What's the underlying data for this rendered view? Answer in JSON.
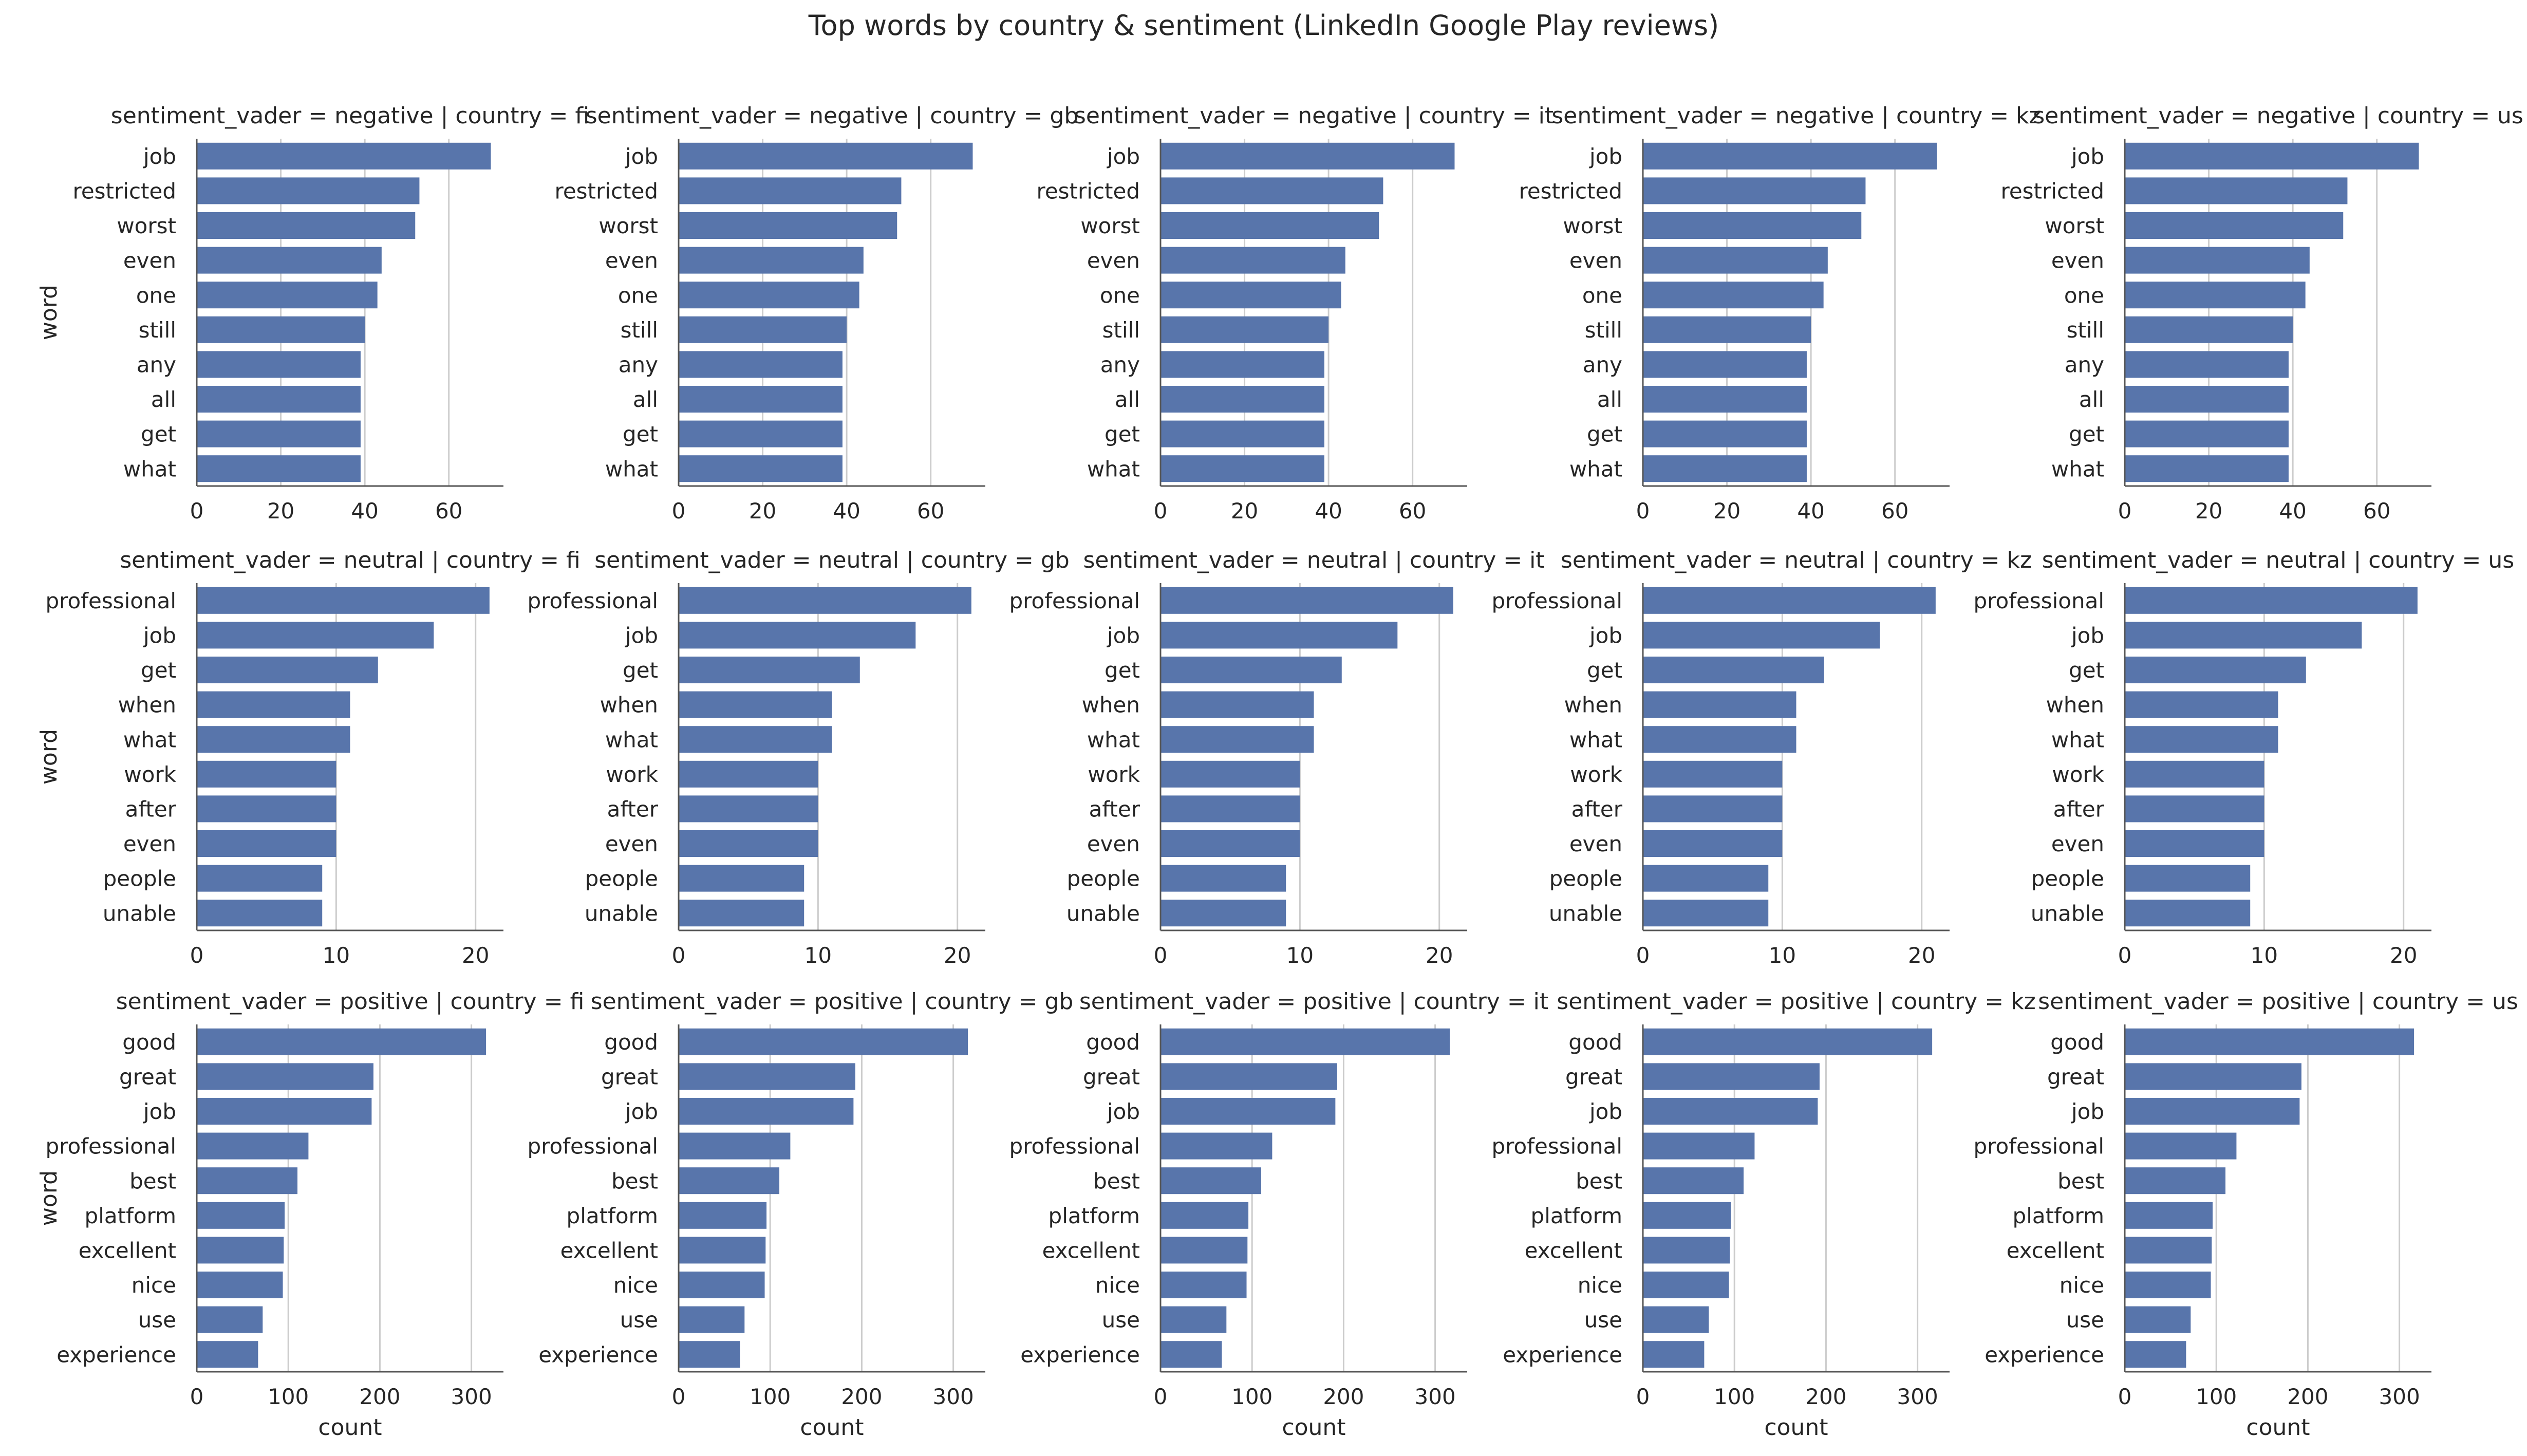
{
  "figure_title": "Top words by country & sentiment (LinkedIn Google Play reviews)",
  "bar_color": "#5875ab",
  "grid_color": "#cccccc",
  "rows": [
    {
      "sentiment": "negative",
      "xlim": [
        0,
        73
      ],
      "ticks": [
        0,
        20,
        40,
        60
      ],
      "tick_labels": [
        "0",
        "20",
        "40",
        "60"
      ],
      "words": [
        "job",
        "restricted",
        "worst",
        "even",
        "one",
        "still",
        "any",
        "all",
        "get",
        "what"
      ],
      "counts": [
        70,
        53,
        52,
        44,
        43,
        40,
        39,
        39,
        39,
        39
      ]
    },
    {
      "sentiment": "neutral",
      "xlim": [
        0,
        22
      ],
      "ticks": [
        0,
        10,
        20
      ],
      "tick_labels": [
        "0",
        "10",
        "20"
      ],
      "words": [
        "professional",
        "job",
        "get",
        "when",
        "what",
        "work",
        "after",
        "even",
        "people",
        "unable"
      ],
      "counts": [
        21,
        17,
        13,
        11,
        11,
        10,
        10,
        10,
        9,
        9
      ]
    },
    {
      "sentiment": "positive",
      "xlim": [
        0,
        335
      ],
      "ticks": [
        0,
        100,
        200,
        300
      ],
      "tick_labels": [
        "0",
        "100",
        "200",
        "300"
      ],
      "words": [
        "good",
        "great",
        "job",
        "professional",
        "best",
        "platform",
        "excellent",
        "nice",
        "use",
        "experience"
      ],
      "counts": [
        316,
        193,
        191,
        122,
        110,
        96,
        95,
        94,
        72,
        67
      ]
    }
  ],
  "chart_data": [
    {
      "type": "bar",
      "orientation": "horizontal",
      "title": "sentiment_vader = negative | country = fi",
      "categories": [
        "job",
        "restricted",
        "worst",
        "even",
        "one",
        "still",
        "any",
        "all",
        "get",
        "what"
      ],
      "values": [
        70,
        53,
        52,
        44,
        43,
        40,
        39,
        39,
        39,
        39
      ],
      "xlabel": "",
      "ylabel": "word",
      "xlim": [
        0,
        73
      ],
      "grid": true
    },
    {
      "type": "bar",
      "orientation": "horizontal",
      "title": "sentiment_vader = negative | country = gb",
      "categories": [
        "job",
        "restricted",
        "worst",
        "even",
        "one",
        "still",
        "any",
        "all",
        "get",
        "what"
      ],
      "values": [
        70,
        53,
        52,
        44,
        43,
        40,
        39,
        39,
        39,
        39
      ],
      "xlabel": "",
      "ylabel": "",
      "xlim": [
        0,
        73
      ],
      "grid": true
    },
    {
      "type": "bar",
      "orientation": "horizontal",
      "title": "sentiment_vader = negative | country = it",
      "categories": [
        "job",
        "restricted",
        "worst",
        "even",
        "one",
        "still",
        "any",
        "all",
        "get",
        "what"
      ],
      "values": [
        70,
        53,
        52,
        44,
        43,
        40,
        39,
        39,
        39,
        39
      ],
      "xlabel": "",
      "ylabel": "",
      "xlim": [
        0,
        73
      ],
      "grid": true
    },
    {
      "type": "bar",
      "orientation": "horizontal",
      "title": "sentiment_vader = negative | country = kz",
      "categories": [
        "job",
        "restricted",
        "worst",
        "even",
        "one",
        "still",
        "any",
        "all",
        "get",
        "what"
      ],
      "values": [
        70,
        53,
        52,
        44,
        43,
        40,
        39,
        39,
        39,
        39
      ],
      "xlabel": "",
      "ylabel": "",
      "xlim": [
        0,
        73
      ],
      "grid": true
    },
    {
      "type": "bar",
      "orientation": "horizontal",
      "title": "sentiment_vader = negative | country = us",
      "categories": [
        "job",
        "restricted",
        "worst",
        "even",
        "one",
        "still",
        "any",
        "all",
        "get",
        "what"
      ],
      "values": [
        70,
        53,
        52,
        44,
        43,
        40,
        39,
        39,
        39,
        39
      ],
      "xlabel": "",
      "ylabel": "",
      "xlim": [
        0,
        73
      ],
      "grid": true
    },
    {
      "type": "bar",
      "orientation": "horizontal",
      "title": "sentiment_vader = neutral | country = fi",
      "categories": [
        "professional",
        "job",
        "get",
        "when",
        "what",
        "work",
        "after",
        "even",
        "people",
        "unable"
      ],
      "values": [
        21,
        17,
        13,
        11,
        11,
        10,
        10,
        10,
        9,
        9
      ],
      "xlabel": "",
      "ylabel": "word",
      "xlim": [
        0,
        22
      ],
      "grid": true
    },
    {
      "type": "bar",
      "orientation": "horizontal",
      "title": "sentiment_vader = neutral | country = gb",
      "categories": [
        "professional",
        "job",
        "get",
        "when",
        "what",
        "work",
        "after",
        "even",
        "people",
        "unable"
      ],
      "values": [
        21,
        17,
        13,
        11,
        11,
        10,
        10,
        10,
        9,
        9
      ],
      "xlabel": "",
      "ylabel": "",
      "xlim": [
        0,
        22
      ],
      "grid": true
    },
    {
      "type": "bar",
      "orientation": "horizontal",
      "title": "sentiment_vader = neutral | country = it",
      "categories": [
        "professional",
        "job",
        "get",
        "when",
        "what",
        "work",
        "after",
        "even",
        "people",
        "unable"
      ],
      "values": [
        21,
        17,
        13,
        11,
        11,
        10,
        10,
        10,
        9,
        9
      ],
      "xlabel": "",
      "ylabel": "",
      "xlim": [
        0,
        22
      ],
      "grid": true
    },
    {
      "type": "bar",
      "orientation": "horizontal",
      "title": "sentiment_vader = neutral | country = kz",
      "categories": [
        "professional",
        "job",
        "get",
        "when",
        "what",
        "work",
        "after",
        "even",
        "people",
        "unable"
      ],
      "values": [
        21,
        17,
        13,
        11,
        11,
        10,
        10,
        10,
        9,
        9
      ],
      "xlabel": "",
      "ylabel": "",
      "xlim": [
        0,
        22
      ],
      "grid": true
    },
    {
      "type": "bar",
      "orientation": "horizontal",
      "title": "sentiment_vader = neutral | country = us",
      "categories": [
        "professional",
        "job",
        "get",
        "when",
        "what",
        "work",
        "after",
        "even",
        "people",
        "unable"
      ],
      "values": [
        21,
        17,
        13,
        11,
        11,
        10,
        10,
        10,
        9,
        9
      ],
      "xlabel": "",
      "ylabel": "",
      "xlim": [
        0,
        22
      ],
      "grid": true
    },
    {
      "type": "bar",
      "orientation": "horizontal",
      "title": "sentiment_vader = positive | country = fi",
      "categories": [
        "good",
        "great",
        "job",
        "professional",
        "best",
        "platform",
        "excellent",
        "nice",
        "use",
        "experience"
      ],
      "values": [
        316,
        193,
        191,
        122,
        110,
        96,
        95,
        94,
        72,
        67
      ],
      "xlabel": "count",
      "ylabel": "word",
      "xlim": [
        0,
        335
      ],
      "grid": true
    },
    {
      "type": "bar",
      "orientation": "horizontal",
      "title": "sentiment_vader = positive | country = gb",
      "categories": [
        "good",
        "great",
        "job",
        "professional",
        "best",
        "platform",
        "excellent",
        "nice",
        "use",
        "experience"
      ],
      "values": [
        316,
        193,
        191,
        122,
        110,
        96,
        95,
        94,
        72,
        67
      ],
      "xlabel": "count",
      "ylabel": "",
      "xlim": [
        0,
        335
      ],
      "grid": true
    },
    {
      "type": "bar",
      "orientation": "horizontal",
      "title": "sentiment_vader = positive | country = it",
      "categories": [
        "good",
        "great",
        "job",
        "professional",
        "best",
        "platform",
        "excellent",
        "nice",
        "use",
        "experience"
      ],
      "values": [
        316,
        193,
        191,
        122,
        110,
        96,
        95,
        94,
        72,
        67
      ],
      "xlabel": "count",
      "ylabel": "",
      "xlim": [
        0,
        335
      ],
      "grid": true
    },
    {
      "type": "bar",
      "orientation": "horizontal",
      "title": "sentiment_vader = positive | country = kz",
      "categories": [
        "good",
        "great",
        "job",
        "professional",
        "best",
        "platform",
        "excellent",
        "nice",
        "use",
        "experience"
      ],
      "values": [
        316,
        193,
        191,
        122,
        110,
        96,
        95,
        94,
        72,
        67
      ],
      "xlabel": "count",
      "ylabel": "",
      "xlim": [
        0,
        335
      ],
      "grid": true
    },
    {
      "type": "bar",
      "orientation": "horizontal",
      "title": "sentiment_vader = positive | country = us",
      "categories": [
        "good",
        "great",
        "job",
        "professional",
        "best",
        "platform",
        "excellent",
        "nice",
        "use",
        "experience"
      ],
      "values": [
        316,
        193,
        191,
        122,
        110,
        96,
        95,
        94,
        72,
        67
      ],
      "xlabel": "count",
      "ylabel": "",
      "xlim": [
        0,
        335
      ],
      "grid": true
    }
  ]
}
